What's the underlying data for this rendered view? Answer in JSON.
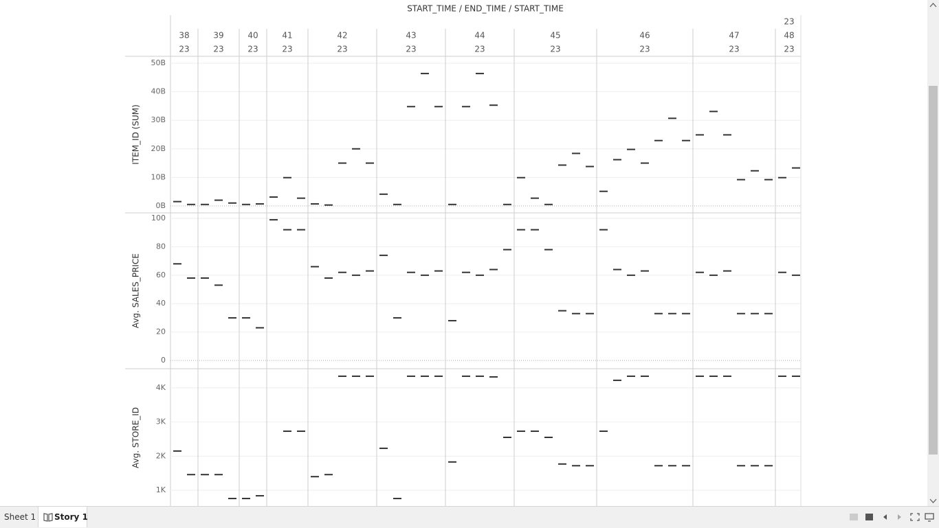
{
  "tabs": [
    "Sheet 1",
    "Story 1"
  ],
  "chart_data": {
    "type": "dash",
    "title": "START_TIME / END_TIME / START_TIME",
    "color": "#333333",
    "columns": [
      {
        "label": "38",
        "year": "23"
      },
      {
        "label": "39",
        "year": "23"
      },
      {
        "label": "40",
        "year": "23"
      },
      {
        "label": "41",
        "year": "23"
      },
      {
        "label": "42",
        "year": "23"
      },
      {
        "label": "43",
        "year": "23"
      },
      {
        "label": "44",
        "year": "23"
      },
      {
        "label": "45",
        "year": "23"
      },
      {
        "label": "46",
        "year": "23"
      },
      {
        "label": "47",
        "year": "23"
      },
      {
        "label": "48",
        "year": "23",
        "extra": "23"
      }
    ],
    "panes": [
      {
        "label": "ITEM_ID (SUM)",
        "ylim": [
          -2.2,
          52.2
        ],
        "yticks": [
          {
            "value": 0,
            "label": "0B"
          },
          {
            "value": 10,
            "label": "10B"
          },
          {
            "value": 20,
            "label": "20B"
          },
          {
            "value": 30,
            "label": "30B"
          },
          {
            "value": 40,
            "label": "40B"
          },
          {
            "value": 50,
            "label": "50B"
          }
        ],
        "values": [
          [
            1.5,
            0.5
          ],
          [
            0.5,
            2,
            1
          ],
          [
            0.5,
            0.7
          ],
          [
            3.1,
            9.9,
            2.7
          ],
          [
            0.7,
            0.3,
            15,
            20,
            15
          ],
          [
            4.1,
            0.5,
            34.8,
            46.4,
            34.8
          ],
          [
            0.5,
            34.8,
            46.4,
            35.3,
            0.5
          ],
          [
            9.9,
            2.7,
            0.5,
            14.3,
            18.4,
            13.8
          ],
          [
            5.1,
            16.2,
            19.8,
            15,
            22.9,
            30.7,
            22.9
          ],
          [
            24.9,
            33.1,
            24.9,
            9.2,
            12.3,
            9.2
          ],
          [
            9.9,
            13.3
          ]
        ]
      },
      {
        "label": "Avg. SALES_PRICE",
        "ylim": [
          -5.3,
          103.4
        ],
        "yticks": [
          0,
          20,
          40,
          60,
          80,
          100
        ],
        "values": [
          [
            68,
            58
          ],
          [
            58,
            53,
            30
          ],
          [
            30,
            23
          ],
          [
            99,
            92,
            92
          ],
          [
            66,
            58,
            62,
            60,
            63
          ],
          [
            74,
            30,
            62,
            60,
            63
          ],
          [
            28,
            62,
            60,
            64,
            78
          ],
          [
            92,
            92,
            78,
            35,
            33,
            33
          ],
          [
            92,
            64,
            60,
            63,
            33,
            33,
            33
          ],
          [
            62,
            60,
            63,
            33,
            33,
            33
          ],
          [
            62,
            60
          ]
        ]
      },
      {
        "label": "Avg. STORE_ID",
        "ylim": [
          540,
          4540
        ],
        "yticks": [
          {
            "value": 1000,
            "label": "1K"
          },
          {
            "value": 2000,
            "label": "2K"
          },
          {
            "value": 3000,
            "label": "3K"
          },
          {
            "value": 4000,
            "label": "4K"
          }
        ],
        "values": [
          [
            2150,
            1460
          ],
          [
            1460,
            1460,
            760
          ],
          [
            760,
            840
          ],
          [
            null,
            2730,
            2730
          ],
          [
            1400,
            1460,
            4340,
            4340,
            4340
          ],
          [
            2230,
            760,
            4340,
            4340,
            4340
          ],
          [
            1830,
            4340,
            4340,
            4320,
            2550
          ],
          [
            2730,
            2730,
            2550,
            1770,
            1720,
            1720
          ],
          [
            2730,
            4220,
            4340,
            4340,
            1720,
            1720,
            1720
          ],
          [
            4340,
            4340,
            4340,
            1720,
            1720,
            1720
          ],
          [
            4340,
            4340
          ]
        ]
      }
    ]
  }
}
